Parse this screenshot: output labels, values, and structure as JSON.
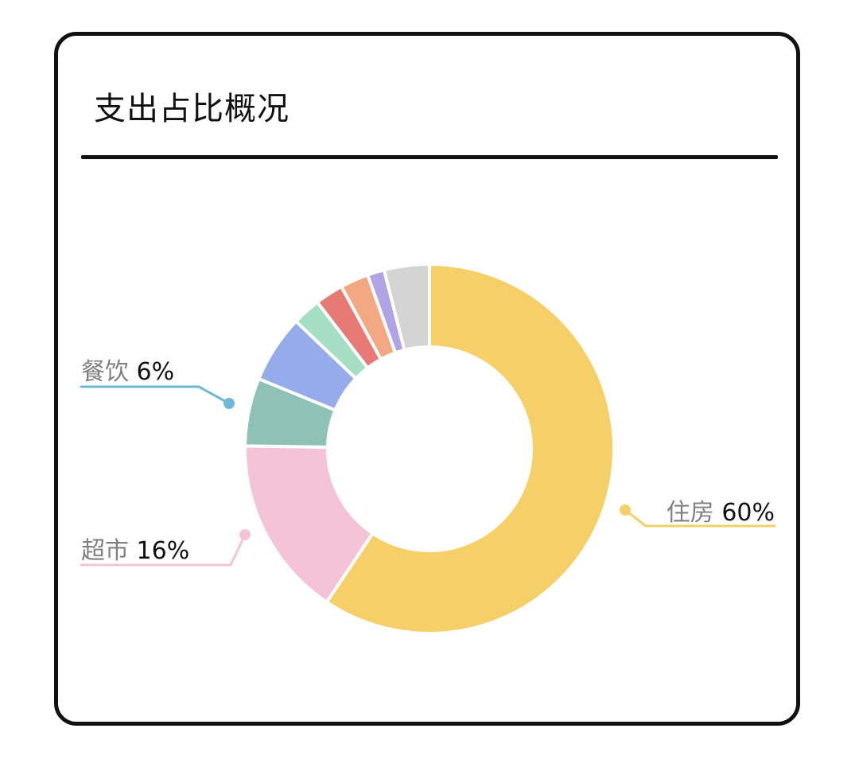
{
  "card": {
    "title": "支出占比概况"
  },
  "chart_data": {
    "type": "pie",
    "variant": "donut",
    "title": "支出占比概况",
    "slices": [
      {
        "label": "住房",
        "value": 60,
        "color": "#F5CF68",
        "callout": "60%"
      },
      {
        "label": "超市",
        "value": 16,
        "color": "#F4C3D6",
        "callout": "16%"
      },
      {
        "label": "",
        "value": 6,
        "color": "#8FC2B6"
      },
      {
        "label": "餐饮",
        "value": 6,
        "color": "#96ABEA",
        "callout": "6%"
      },
      {
        "label": "",
        "value": 2.5,
        "color": "#A6DEC4"
      },
      {
        "label": "",
        "value": 2.5,
        "color": "#E87A75"
      },
      {
        "label": "",
        "value": 2.5,
        "color": "#F2A983"
      },
      {
        "label": "",
        "value": 1.5,
        "color": "#B0A3E6"
      },
      {
        "label": "",
        "value": 4,
        "color": "#D4D4D4"
      }
    ],
    "callout_colors": {
      "住房": "#F5CF68",
      "超市": "#F4C3D6",
      "餐饮": "#6EB7D8"
    },
    "label_text_color": "#808080",
    "value_text_color": "#111111"
  }
}
